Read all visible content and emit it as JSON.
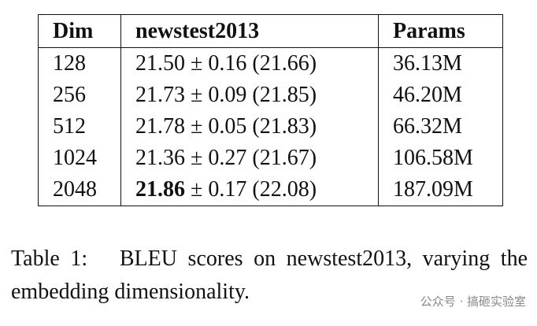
{
  "table": {
    "header": [
      "Dim",
      "newstest2013",
      "Params"
    ],
    "rows": [
      [
        "128",
        "21.50 ± 0.16 (21.66)",
        "36.13M"
      ],
      [
        "256",
        "21.73 ± 0.09 (21.85)",
        "46.20M"
      ],
      [
        "512",
        "21.78 ± 0.05 (21.83)",
        "66.32M"
      ],
      [
        "1024",
        "21.36 ± 0.27 (21.67)",
        "106.58M"
      ],
      [
        "2048",
        [
          "21.86",
          "± 0.17 (22.08)"
        ],
        "187.09M"
      ]
    ]
  },
  "caption": {
    "label": "Table 1:",
    "text": "BLEU scores on newstest2013, varying the embedding dimensionality."
  },
  "watermark": "公众号 · 搞砸实验室"
}
